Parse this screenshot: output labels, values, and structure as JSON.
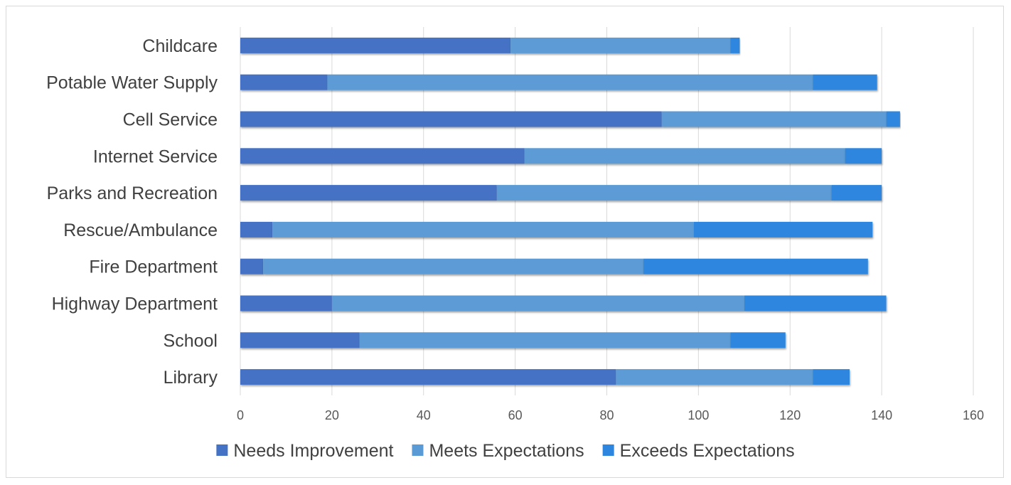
{
  "chart_data": {
    "type": "bar",
    "orientation": "horizontal",
    "stacked": true,
    "title": "",
    "xlabel": "",
    "ylabel": "",
    "xlim": [
      0,
      160
    ],
    "x_ticks": [
      0,
      20,
      40,
      60,
      80,
      100,
      120,
      140,
      160
    ],
    "grid": "vertical",
    "legend_position": "bottom",
    "categories": [
      "Childcare",
      "Potable Water Supply",
      "Cell Service",
      "Internet Service",
      "Parks and Recreation",
      "Rescue/Ambulance",
      "Fire Department",
      "Highway Department",
      "School",
      "Library"
    ],
    "series": [
      {
        "name": "Needs Improvement",
        "color": "#4472c4",
        "values": [
          59,
          19,
          92,
          62,
          56,
          7,
          5,
          20,
          26,
          82
        ]
      },
      {
        "name": "Meets Expectations",
        "color": "#5b9bd5",
        "values": [
          48,
          106,
          49,
          70,
          73,
          92,
          83,
          90,
          81,
          43
        ]
      },
      {
        "name": "Exceeds Expectations",
        "color": "#2e86de",
        "values": [
          2,
          14,
          3,
          8,
          11,
          39,
          49,
          31,
          12,
          8
        ]
      }
    ]
  }
}
